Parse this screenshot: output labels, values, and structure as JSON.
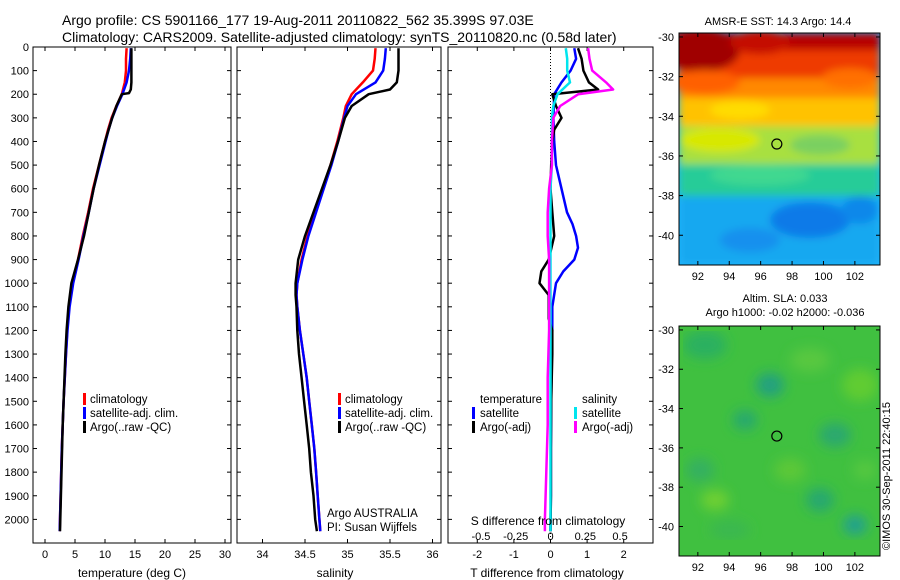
{
  "figure": {
    "title_line1": "Argo profile: CS 5901166_177 19-Aug-2011 20110822_562 35.399S 97.03E",
    "title_line2": "Climatology: CARS2009. Satellite-adjusted climatology: synTS_20110820.nc (0.58d later)",
    "credit": "Argo AUSTRALIA",
    "pi": "PI: Susan Wijffels",
    "footer": "©IMOS 30-Sep-2011 22:40:15"
  },
  "colors": {
    "climatology": "#ff0000",
    "satellite": "#0000ff",
    "argo": "#000000",
    "s_satellite": "#00e5ee",
    "s_argo": "#ff00ff"
  },
  "chart_data": [
    {
      "type": "line",
      "name": "temperature-profile",
      "xlabel": "temperature (deg C)",
      "ylabel": "",
      "xlim": [
        -2,
        31
      ],
      "ylim": [
        2100,
        0
      ],
      "xticks": [
        "0",
        "5",
        "10",
        "15",
        "20",
        "25",
        "30"
      ],
      "yticks": [
        "0",
        "100",
        "200",
        "300",
        "400",
        "500",
        "600",
        "700",
        "800",
        "900",
        "1000",
        "1100",
        "1200",
        "1300",
        "1400",
        "1500",
        "1600",
        "1700",
        "1800",
        "1900",
        "2000"
      ],
      "legend": [
        "climatology",
        "satellite-adj. clim.",
        "Argo(..raw -QC)"
      ],
      "series": [
        {
          "name": "climatology",
          "depth": [
            5,
            50,
            100,
            150,
            200,
            250,
            300,
            350,
            400,
            500,
            600,
            700,
            800,
            900,
            1000,
            1100,
            1200,
            1300,
            1400,
            1500,
            1600,
            1700,
            1800,
            1900,
            2000,
            2050
          ],
          "values": [
            13.6,
            13.5,
            13.5,
            13.3,
            12.8,
            11.9,
            11.1,
            10.5,
            10.0,
            9.0,
            8.0,
            7.2,
            6.3,
            5.5,
            4.6,
            4.0,
            3.7,
            3.5,
            3.3,
            3.1,
            2.95,
            2.8,
            2.7,
            2.6,
            2.5,
            2.45
          ]
        },
        {
          "name": "satellite",
          "depth": [
            5,
            50,
            100,
            150,
            200,
            250,
            300,
            350,
            400,
            500,
            600,
            700,
            800,
            900,
            1000,
            1100,
            1200,
            1300,
            1400,
            1500,
            1600,
            1700,
            1800,
            1900,
            2000,
            2050
          ],
          "values": [
            14.3,
            14.2,
            14.0,
            13.6,
            12.9,
            12.0,
            11.2,
            10.6,
            10.1,
            9.1,
            8.1,
            7.3,
            6.4,
            5.6,
            4.7,
            4.1,
            3.75,
            3.5,
            3.3,
            3.1,
            2.95,
            2.8,
            2.7,
            2.6,
            2.5,
            2.45
          ]
        },
        {
          "name": "argo",
          "depth": [
            5,
            50,
            100,
            150,
            180,
            195,
            200,
            250,
            300,
            350,
            400,
            500,
            600,
            700,
            800,
            900,
            1000,
            1100,
            1200,
            1300,
            1400,
            1500,
            1600,
            1700,
            1800,
            1900,
            2000,
            2050
          ],
          "values": [
            14.4,
            14.4,
            14.4,
            14.4,
            14.3,
            14.0,
            12.8,
            11.9,
            11.2,
            10.6,
            10.0,
            9.0,
            8.1,
            7.3,
            6.5,
            5.5,
            4.4,
            3.9,
            3.6,
            3.4,
            3.25,
            3.1,
            2.95,
            2.85,
            2.75,
            2.65,
            2.55,
            2.5
          ]
        }
      ]
    },
    {
      "type": "line",
      "name": "salinity-profile",
      "xlabel": "salinity",
      "xlim": [
        33.7,
        36.1
      ],
      "ylim": [
        2100,
        0
      ],
      "xticks": [
        "34",
        "34.5",
        "35",
        "35.5",
        "36"
      ],
      "legend": [
        "climatology",
        "satellite-adj. clim.",
        "Argo(..raw -QC)"
      ],
      "series": [
        {
          "name": "climatology",
          "depth": [
            5,
            50,
            100,
            150,
            200,
            250,
            300,
            400,
            500,
            600,
            700,
            800,
            900,
            1000,
            1050,
            1100,
            1200,
            1300,
            1400,
            1500,
            1600,
            1700,
            1800,
            1900,
            2000,
            2050
          ],
          "values": [
            35.33,
            35.32,
            35.3,
            35.18,
            35.05,
            34.98,
            34.95,
            34.88,
            34.8,
            34.71,
            34.62,
            34.53,
            34.46,
            34.41,
            34.4,
            34.41,
            34.44,
            34.48,
            34.52,
            34.55,
            34.58,
            34.61,
            34.63,
            34.65,
            34.67,
            34.68
          ]
        },
        {
          "name": "satellite",
          "depth": [
            5,
            50,
            100,
            150,
            200,
            250,
            300,
            400,
            500,
            600,
            700,
            800,
            900,
            1000,
            1050,
            1100,
            1200,
            1300,
            1400,
            1500,
            1600,
            1700,
            1800,
            1900,
            2000,
            2050
          ],
          "values": [
            35.45,
            35.44,
            35.42,
            35.33,
            35.1,
            35.0,
            34.96,
            34.89,
            34.81,
            34.72,
            34.63,
            34.54,
            34.47,
            34.41,
            34.4,
            34.41,
            34.44,
            34.48,
            34.52,
            34.55,
            34.58,
            34.61,
            34.63,
            34.65,
            34.67,
            34.68
          ]
        },
        {
          "name": "argo",
          "depth": [
            5,
            50,
            100,
            150,
            180,
            200,
            250,
            300,
            400,
            500,
            600,
            700,
            800,
            900,
            1000,
            1050,
            1100,
            1200,
            1300,
            1400,
            1500,
            1600,
            1700,
            1800,
            1900,
            2000,
            2050
          ],
          "values": [
            35.6,
            35.6,
            35.6,
            35.58,
            35.5,
            35.25,
            35.05,
            34.97,
            34.89,
            34.8,
            34.7,
            34.6,
            34.5,
            34.42,
            34.39,
            34.39,
            34.4,
            34.41,
            34.43,
            34.46,
            34.49,
            34.52,
            34.55,
            34.57,
            34.6,
            34.62,
            34.64
          ]
        }
      ]
    },
    {
      "type": "line",
      "name": "difference-profile",
      "xlabel": "T difference from climatology",
      "x2label": "S difference from climatology",
      "xlim": [
        -2.8,
        2.8
      ],
      "ylim": [
        2100,
        0
      ],
      "xticks": [
        "-2",
        "-1",
        "0",
        "1",
        "2"
      ],
      "x2ticks": [
        "-0.5",
        "-0.25",
        "0",
        "0.25",
        "0.5"
      ],
      "legend_headers": [
        "temperature",
        "salinity"
      ],
      "legend": [
        "satellite",
        "Argo(-adj)",
        "satellite",
        "Argo(-adj)"
      ],
      "series": [
        {
          "name": "T satellite",
          "depth": [
            5,
            50,
            100,
            150,
            200,
            300,
            400,
            500,
            600,
            700,
            750,
            800,
            850,
            900,
            950,
            1000,
            1100,
            1200,
            1300,
            1500,
            1700,
            1900,
            2050
          ],
          "values": [
            0.65,
            0.7,
            0.55,
            0.3,
            0.1,
            0.08,
            0.1,
            0.15,
            0.3,
            0.45,
            0.6,
            0.7,
            0.75,
            0.65,
            0.35,
            0.15,
            0.05,
            0.05,
            0.03,
            0.02,
            0.01,
            0.01,
            0.0
          ]
        },
        {
          "name": "T argo",
          "depth": [
            5,
            50,
            100,
            150,
            180,
            200,
            250,
            300,
            350,
            400,
            500,
            600,
            700,
            800,
            900,
            950,
            1000,
            1050,
            1100,
            1150,
            1200,
            1300,
            1500,
            1700,
            1900,
            2050
          ],
          "values": [
            0.75,
            0.85,
            0.9,
            1.05,
            1.3,
            0.05,
            0.15,
            0.3,
            0.1,
            0.05,
            0.02,
            0.0,
            0.05,
            0.1,
            -0.05,
            -0.25,
            -0.3,
            -0.05,
            -0.05,
            -0.05,
            0.05,
            0.05,
            0.02,
            0.01,
            0.01,
            0.0
          ]
        },
        {
          "name": "S satellite",
          "depth": [
            5,
            50,
            100,
            150,
            200,
            250,
            300,
            400,
            500,
            600,
            700,
            800,
            1000,
            1200,
            1400,
            1600,
            1800,
            2000,
            2050
          ],
          "values": [
            0.11,
            0.12,
            0.12,
            0.14,
            0.05,
            0.02,
            0.01,
            0.01,
            0.01,
            0.0,
            0.0,
            0.0,
            0.0,
            0.0,
            0.0,
            0.0,
            0.0,
            0.0,
            0.0
          ]
        },
        {
          "name": "S argo",
          "depth": [
            5,
            50,
            100,
            150,
            180,
            200,
            250,
            300,
            400,
            500,
            600,
            700,
            800,
            900,
            1000,
            1200,
            1400,
            1600,
            1800,
            2000,
            2050
          ],
          "values": [
            0.27,
            0.28,
            0.3,
            0.4,
            0.45,
            0.2,
            0.07,
            0.02,
            0.01,
            0.01,
            -0.01,
            -0.02,
            -0.02,
            -0.01,
            -0.01,
            -0.01,
            -0.02,
            -0.02,
            -0.03,
            -0.04,
            -0.04
          ]
        }
      ]
    },
    {
      "type": "heatmap",
      "name": "amsr-sst-map",
      "title": "AMSR-E SST: 14.3  Argo: 14.4",
      "xlim": [
        90.8,
        103.6
      ],
      "ylim": [
        -41.5,
        -29.8
      ],
      "xticks": [
        "92",
        "94",
        "96",
        "98",
        "100",
        "102"
      ],
      "yticks": [
        "-30",
        "-32",
        "-34",
        "-36",
        "-38",
        "-40"
      ],
      "marker": {
        "lon": 97.03,
        "lat": -35.399
      }
    },
    {
      "type": "heatmap",
      "name": "sla-map",
      "title": "Altim. SLA: 0.033",
      "subtitle": "Argo h1000: -0.02  h2000: -0.036",
      "xlim": [
        90.8,
        103.6
      ],
      "ylim": [
        -41.5,
        -29.8
      ],
      "xticks": [
        "92",
        "94",
        "96",
        "98",
        "100",
        "102"
      ],
      "yticks": [
        "-30",
        "-32",
        "-34",
        "-36",
        "-38",
        "-40"
      ],
      "marker": {
        "lon": 97.03,
        "lat": -35.399
      }
    }
  ]
}
